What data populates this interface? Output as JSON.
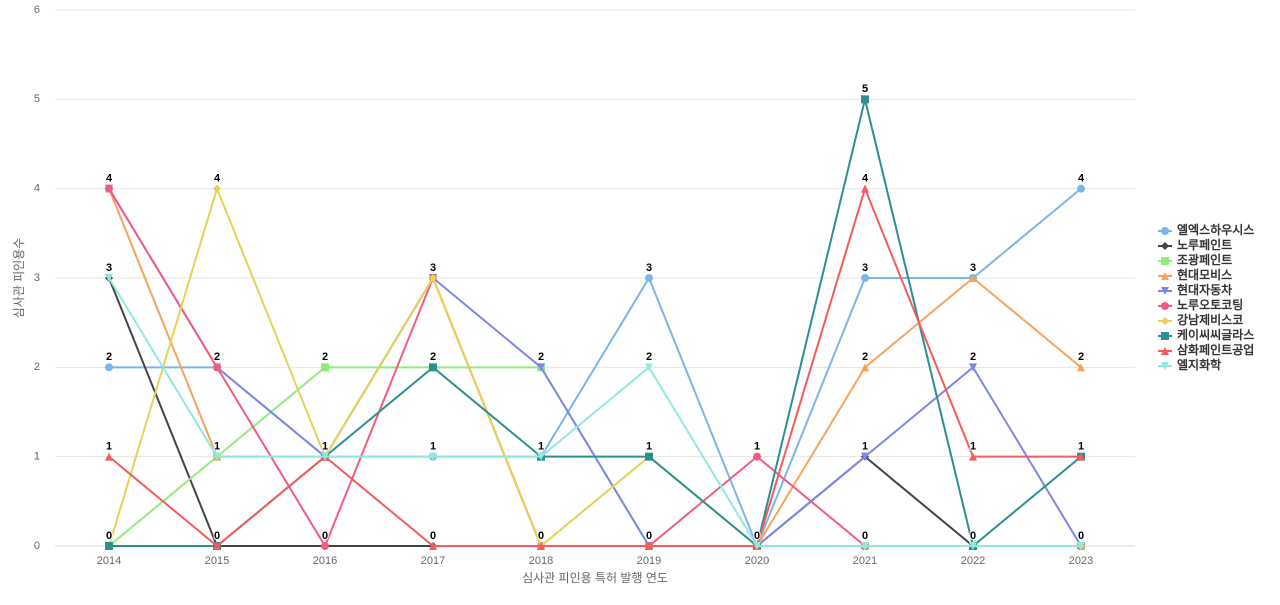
{
  "chart_data": {
    "type": "line",
    "x_label": "심사관 피인용 특허 발행 연도",
    "y_label": "심사관 피인용수",
    "categories": [
      "2014",
      "2015",
      "2016",
      "2017",
      "2018",
      "2019",
      "2020",
      "2021",
      "2022",
      "2023"
    ],
    "ylim": [
      0,
      6
    ],
    "yticks": [
      0,
      1,
      2,
      3,
      4,
      5,
      6
    ],
    "grid": true,
    "legend": "right",
    "series": [
      {
        "name": "엘엑스하우시스",
        "color": "#7cb5ec",
        "values": [
          2,
          2,
          1,
          1,
          1,
          3,
          0,
          3,
          3,
          4
        ]
      },
      {
        "name": "노루페인트",
        "color": "#434348",
        "values": [
          3,
          0,
          0,
          0,
          0,
          0,
          0,
          1,
          0,
          0
        ]
      },
      {
        "name": "조광페인트",
        "color": "#90ed7d",
        "values": [
          0,
          1,
          2,
          2,
          2,
          0,
          0,
          0,
          0,
          0
        ]
      },
      {
        "name": "현대모비스",
        "color": "#f7a35c",
        "values": [
          4,
          1,
          1,
          3,
          0,
          0,
          0,
          2,
          3,
          2
        ]
      },
      {
        "name": "현대자동차",
        "color": "#8085e9",
        "values": [
          4,
          2,
          1,
          3,
          2,
          0,
          0,
          1,
          2,
          0
        ]
      },
      {
        "name": "노루오토코팅",
        "color": "#f15c80",
        "values": [
          4,
          2,
          0,
          3,
          0,
          0,
          1,
          0,
          0,
          0
        ]
      },
      {
        "name": "강남제비스코",
        "color": "#e4d354",
        "values": [
          0,
          4,
          1,
          3,
          0,
          1,
          0,
          0,
          0,
          0
        ]
      },
      {
        "name": "케이씨씨글라스",
        "color": "#2b908f",
        "values": [
          0,
          0,
          1,
          2,
          1,
          1,
          0,
          5,
          0,
          1
        ]
      },
      {
        "name": "삼화페인트공업",
        "color": "#f45b5b",
        "values": [
          1,
          0,
          1,
          0,
          0,
          0,
          0,
          4,
          1,
          1
        ]
      },
      {
        "name": "엘지화학",
        "color": "#91e8e1",
        "values": [
          3,
          1,
          1,
          1,
          1,
          2,
          0,
          0,
          0,
          0
        ]
      }
    ]
  }
}
